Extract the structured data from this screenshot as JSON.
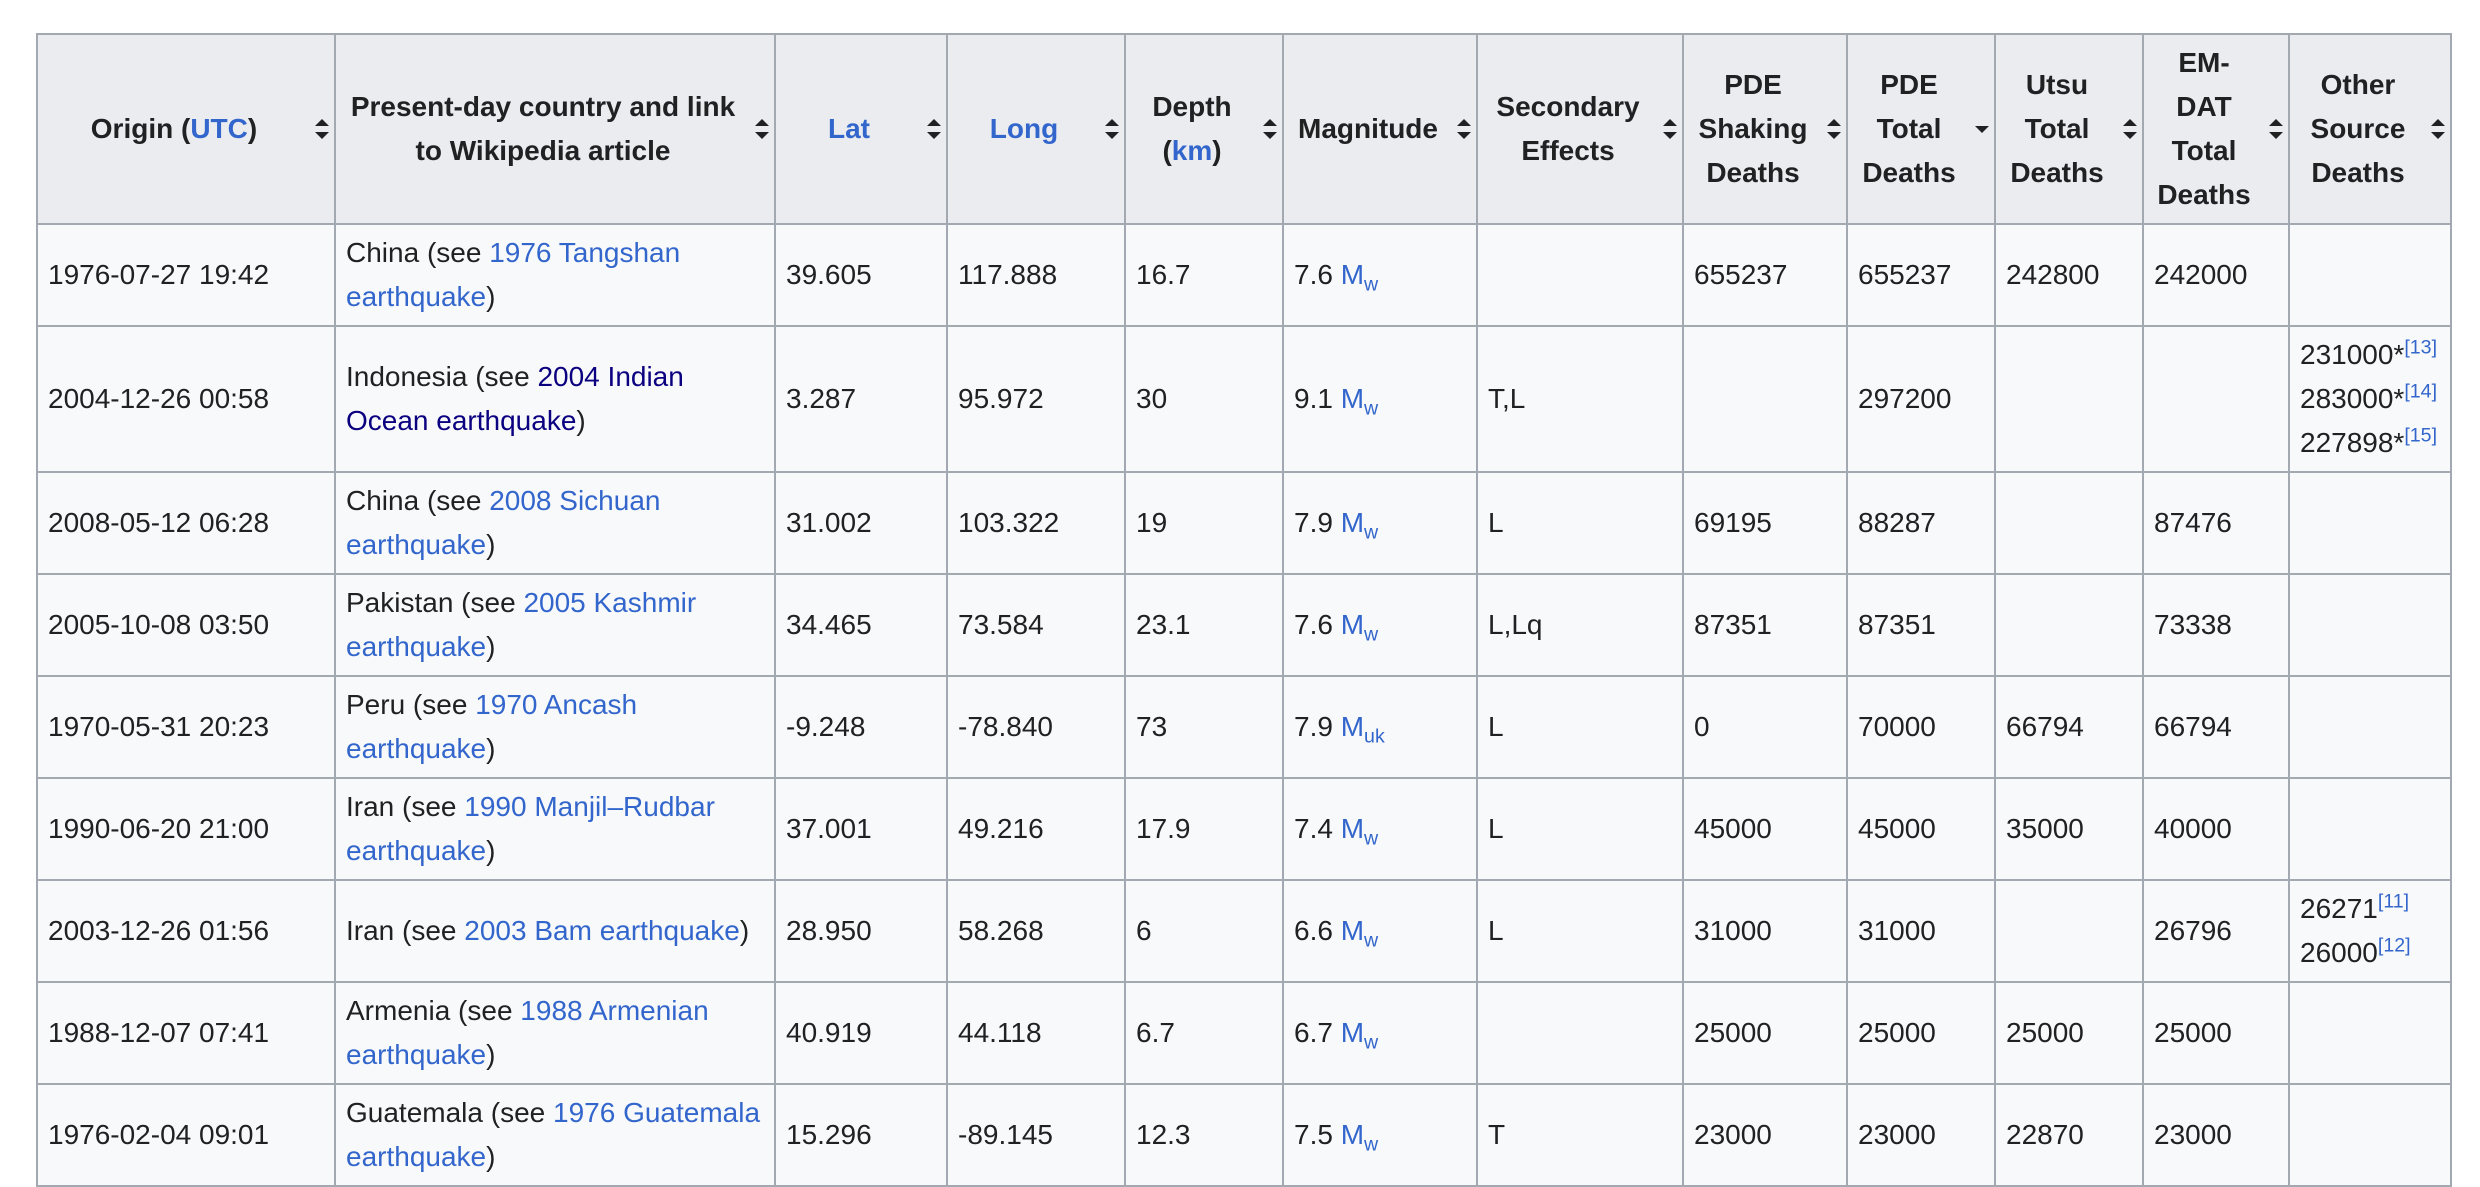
{
  "headers": [
    {
      "pre": "Origin (",
      "link": "UTC",
      "post": ")"
    },
    {
      "text": "Present-day country and link to Wikipedia article"
    },
    {
      "link": "Lat"
    },
    {
      "link": "Long"
    },
    {
      "pre": "Depth (",
      "link": "km",
      "post": ")"
    },
    {
      "text": "Magnitude"
    },
    {
      "text": "Secondary Effects"
    },
    {
      "text": "PDE Shaking Deaths"
    },
    {
      "text": "PDE Total Deaths"
    },
    {
      "text": "Utsu Total Deaths"
    },
    {
      "text": "EM-DAT Total Deaths"
    },
    {
      "text": "Other Source Deaths"
    }
  ],
  "rows": [
    {
      "origin": "1976-07-27 19:42",
      "country": "China",
      "see": " (see ",
      "article": "1976 Tangshan earthquake",
      "close": ")",
      "lat": "39.605",
      "long": "117.888",
      "depth": "16.7",
      "mag": "7.6",
      "scale": "M",
      "scale_sub": "w",
      "secondary": "",
      "pde_shaking": "655237",
      "pde_total": "655237",
      "utsu": "242800",
      "emdat": "242000",
      "other": []
    },
    {
      "origin": "2004-12-26 00:58",
      "country": "Indonesia",
      "see": " (see ",
      "article": "2004 Indian Ocean earthquake",
      "close": ")",
      "lat": "3.287",
      "long": "95.972",
      "depth": "30",
      "mag": "9.1",
      "scale": "M",
      "scale_sub": "w",
      "secondary": "T,L",
      "pde_shaking": "",
      "pde_total": "297200",
      "utsu": "",
      "emdat": "",
      "other": [
        {
          "value": "231000*",
          "ref": "[13]"
        },
        {
          "value": "283000*",
          "ref": "[14]"
        },
        {
          "value": "227898*",
          "ref": "[15]"
        }
      ]
    },
    {
      "origin": "2008-05-12 06:28",
      "country": "China",
      "see": " (see ",
      "article": "2008 Sichuan earthquake",
      "close": ")",
      "lat": "31.002",
      "long": "103.322",
      "depth": "19",
      "mag": "7.9",
      "scale": "M",
      "scale_sub": "w",
      "secondary": "L",
      "pde_shaking": "69195",
      "pde_total": "88287",
      "utsu": "",
      "emdat": "87476",
      "other": []
    },
    {
      "origin": "2005-10-08 03:50",
      "country": "Pakistan",
      "see": " (see ",
      "article": "2005 Kashmir earthquake",
      "close": ")",
      "lat": "34.465",
      "long": "73.584",
      "depth": "23.1",
      "mag": "7.6",
      "scale": "M",
      "scale_sub": "w",
      "secondary": "L,Lq",
      "pde_shaking": "87351",
      "pde_total": "87351",
      "utsu": "",
      "emdat": "73338",
      "other": []
    },
    {
      "origin": "1970-05-31 20:23",
      "country": "Peru",
      "see": " (see ",
      "article": "1970 Ancash earthquake",
      "close": ")",
      "lat": "-9.248",
      "long": "-78.840",
      "depth": "73",
      "mag": "7.9",
      "scale": "M",
      "scale_sub": "uk",
      "secondary": "L",
      "pde_shaking": "0",
      "pde_total": "70000",
      "utsu": "66794",
      "emdat": "66794",
      "other": []
    },
    {
      "origin": "1990-06-20 21:00",
      "country": "Iran",
      "see": " (see ",
      "article": "1990 Manjil–Rudbar earthquake",
      "close": ")",
      "lat": "37.001",
      "long": "49.216",
      "depth": "17.9",
      "mag": "7.4",
      "scale": "M",
      "scale_sub": "w",
      "secondary": "L",
      "pde_shaking": "45000",
      "pde_total": "45000",
      "utsu": "35000",
      "emdat": "40000",
      "other": []
    },
    {
      "origin": "2003-12-26 01:56",
      "country": "Iran",
      "see": " (see ",
      "article": "2003 Bam earthquake",
      "close": ")",
      "lat": "28.950",
      "long": "58.268",
      "depth": "6",
      "mag": "6.6",
      "scale": "M",
      "scale_sub": "w",
      "secondary": "L",
      "pde_shaking": "31000",
      "pde_total": "31000",
      "utsu": "",
      "emdat": "26796",
      "other": [
        {
          "value": "26271",
          "ref": "[11]"
        },
        {
          "value": "26000",
          "ref": "[12]"
        }
      ]
    },
    {
      "origin": "1988-12-07 07:41",
      "country": "Armenia",
      "see": " (see ",
      "article": "1988 Armenian earthquake",
      "close": ")",
      "lat": "40.919",
      "long": "44.118",
      "depth": "6.7",
      "mag": "6.7",
      "scale": "M",
      "scale_sub": "w",
      "secondary": "",
      "pde_shaking": "25000",
      "pde_total": "25000",
      "utsu": "25000",
      "emdat": "25000",
      "other": []
    },
    {
      "origin": "1976-02-04 09:01",
      "country": "Guatemala",
      "see": " (see ",
      "article": "1976 Guatemala earthquake",
      "close": ")",
      "lat": "15.296",
      "long": "-89.145",
      "depth": "12.3",
      "mag": "7.5",
      "scale": "M",
      "scale_sub": "w",
      "secondary": "T",
      "pde_shaking": "23000",
      "pde_total": "23000",
      "utsu": "22870",
      "emdat": "23000",
      "other": []
    }
  ]
}
